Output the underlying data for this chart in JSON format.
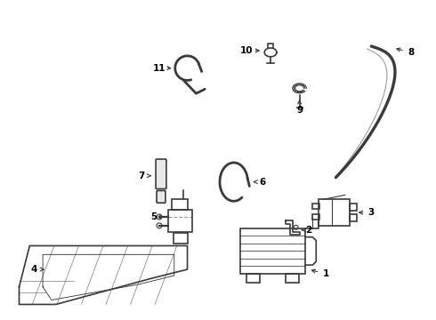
{
  "background_color": "#ffffff",
  "line_color": "#3a3a3a",
  "label_color": "#000000",
  "fig_width": 4.9,
  "fig_height": 3.6,
  "dpi": 100
}
